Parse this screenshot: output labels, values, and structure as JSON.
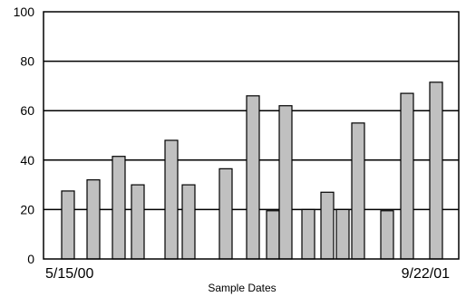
{
  "chart_data": {
    "type": "bar",
    "title": "",
    "xlabel": "Sample Dates",
    "ylabel": "",
    "ylim": [
      0,
      100
    ],
    "yticks": [
      0,
      20,
      40,
      60,
      80,
      100
    ],
    "grid": true,
    "legend": "none",
    "x_start_label": "5/15/00",
    "x_end_label": "9/22/01",
    "bar_color": "#c0c0c0",
    "bar_edge_color": "#000000",
    "values": [
      27.5,
      32,
      41.5,
      30,
      48,
      30,
      36.5,
      66,
      19.5,
      62,
      20,
      27,
      20,
      55,
      19.5,
      67,
      71.5
    ],
    "series": [
      {
        "values": [
          27.5,
          32,
          41.5,
          30,
          48,
          30,
          36.5,
          66,
          19.5,
          62,
          20,
          27,
          20,
          55,
          19.5,
          67,
          71.5
        ]
      }
    ]
  }
}
